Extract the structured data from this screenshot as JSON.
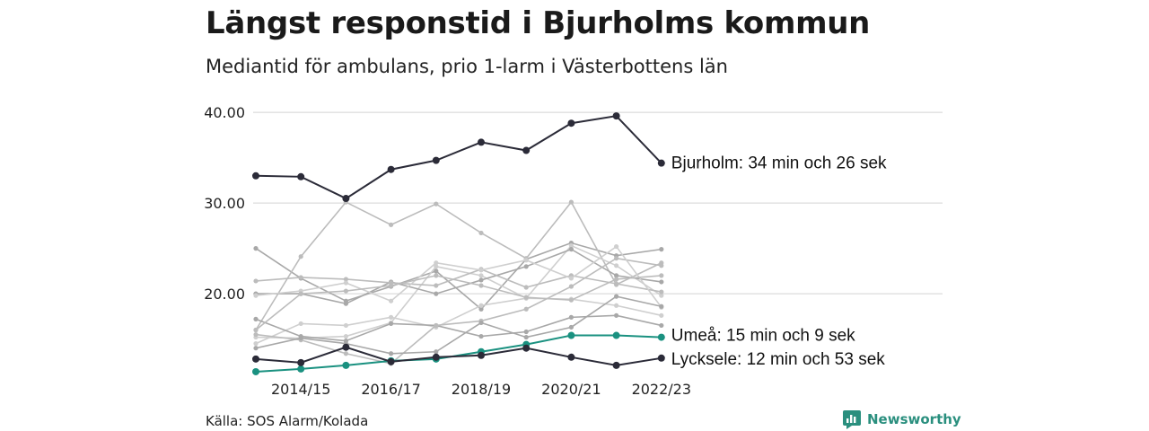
{
  "title": "Längst responstid i Bjurholms kommun",
  "subtitle": "Mediantid för ambulans, prio 1-larm i Västerbottens län",
  "source": "Källa: SOS Alarm/Kolada",
  "brand": "Newsworthy",
  "colors": {
    "bjurholm": "#2b2b38",
    "umea": "#1a9180",
    "lycksele": "#2b2b38",
    "others": [
      "#a8a8a8",
      "#bcbcbc",
      "#cfcfcf"
    ],
    "grid": "#dcdcdc"
  },
  "chart_data": {
    "type": "line",
    "x": [
      "2013/14",
      "2014/15",
      "2015/16",
      "2016/17",
      "2017/18",
      "2018/19",
      "2019/20",
      "2020/21",
      "2021/22",
      "2022/23"
    ],
    "x_tick_labels": [
      "2014/15",
      "2016/17",
      "2018/19",
      "2020/21",
      "2022/23"
    ],
    "y_ticks": [
      "20.00",
      "30.00",
      "40.00"
    ],
    "ylim": [
      11,
      41
    ],
    "grid": true,
    "highlighted_series": [
      {
        "key": "bjurholm",
        "label": "Bjurholm: 34 min och 26 sek",
        "values": [
          33.0,
          32.9,
          30.5,
          33.7,
          34.7,
          36.7,
          35.8,
          38.8,
          39.6,
          34.4
        ]
      },
      {
        "key": "umea",
        "label": "Umeå: 15 min och 9 sek",
        "values": [
          11.4,
          11.7,
          12.1,
          12.6,
          12.8,
          13.6,
          14.4,
          15.4,
          15.4,
          15.2
        ]
      },
      {
        "key": "lycksele",
        "label": "Lycksele: 12 min och 53 sek",
        "values": [
          12.8,
          12.4,
          14.1,
          12.5,
          13.0,
          13.2,
          14.0,
          13.0,
          12.1,
          12.9
        ]
      }
    ],
    "background_series": [
      [
        25.0,
        21.7,
        19.2,
        20.8,
        22.5,
        18.3,
        23.8,
        25.6,
        24.2,
        24.9
      ],
      [
        16.0,
        24.1,
        30.1,
        27.6,
        29.9,
        26.7,
        23.9,
        30.1,
        21.0,
        23.4
      ],
      [
        15.2,
        15.1,
        15.3,
        16.8,
        23.0,
        22.0,
        19.5,
        25.3,
        23.1,
        19.8
      ],
      [
        20.0,
        20.0,
        18.9,
        21.3,
        20.0,
        21.5,
        23.0,
        24.9,
        22.0,
        21.3
      ],
      [
        21.4,
        21.8,
        21.6,
        21.2,
        20.9,
        22.7,
        20.7,
        22.0,
        21.1,
        20.2
      ],
      [
        14.5,
        16.7,
        16.5,
        17.4,
        16.3,
        18.7,
        19.5,
        19.4,
        18.7,
        17.6
      ],
      [
        17.2,
        15.3,
        14.8,
        16.7,
        16.5,
        15.3,
        15.8,
        17.4,
        17.6,
        16.5
      ],
      [
        15.5,
        14.9,
        13.4,
        12.3,
        16.5,
        17.0,
        18.3,
        20.8,
        23.9,
        23.1
      ],
      [
        19.8,
        20.3,
        21.2,
        19.2,
        23.4,
        22.6,
        23.7,
        21.7,
        25.2,
        18.5
      ],
      [
        14.0,
        15.1,
        14.5,
        13.4,
        13.6,
        16.8,
        15.2,
        16.3,
        19.7,
        18.6
      ],
      [
        16.0,
        20.0,
        20.3,
        20.9,
        22.0,
        20.9,
        19.6,
        19.3,
        21.6,
        22.0
      ]
    ]
  }
}
